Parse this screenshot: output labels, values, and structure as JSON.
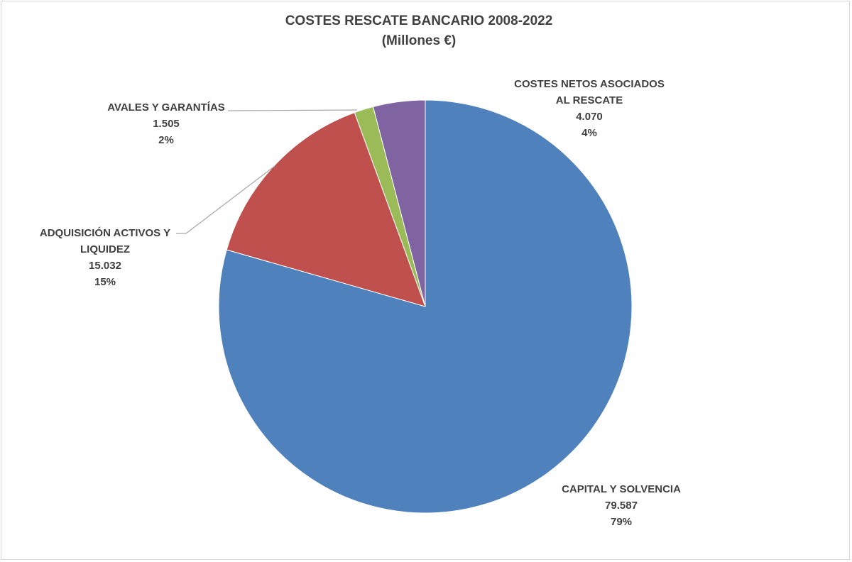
{
  "chart_data": {
    "type": "pie",
    "title": "COSTES RESCATE BANCARIO 2008-2022",
    "subtitle": "(Millones €)",
    "slices": [
      {
        "label_lines": [
          "CAPITAL Y SOLVENCIA"
        ],
        "value": 79587,
        "value_label": "79.587",
        "percent_label": "79%",
        "color": "#4F81BD"
      },
      {
        "label_lines": [
          "ADQUISICIÓN ACTIVOS Y",
          "LIQUIDEZ"
        ],
        "value": 15032,
        "value_label": "15.032",
        "percent_label": "15%",
        "color": "#C0504D"
      },
      {
        "label_lines": [
          "AVALES Y GARANTÍAS"
        ],
        "value": 1505,
        "value_label": "1.505",
        "percent_label": "2%",
        "color": "#9BBB59"
      },
      {
        "label_lines": [
          "COSTES NETOS ASOCIADOS",
          "AL RESCATE"
        ],
        "value": 4070,
        "value_label": "4.070",
        "percent_label": "4%",
        "color": "#8064A2"
      }
    ],
    "start_angle": "12 o'clock",
    "direction": "clockwise",
    "legend": "none",
    "labels": "outside with leader lines"
  }
}
